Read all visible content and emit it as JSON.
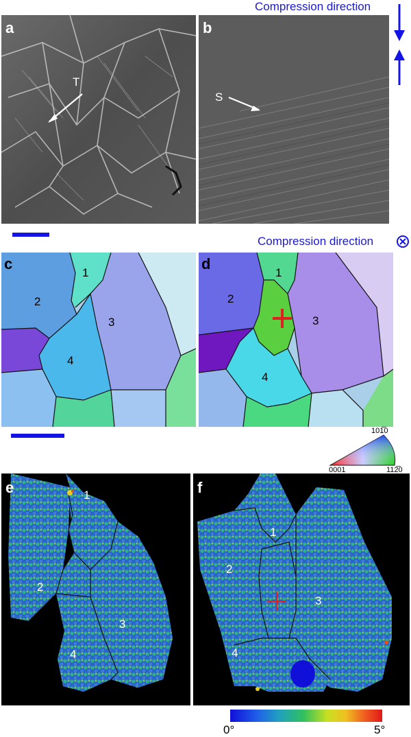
{
  "top_annotation": "Compression direction",
  "middle_annotation": "Compression direction",
  "panels": {
    "a": {
      "label": "a",
      "feature_label": "T"
    },
    "b": {
      "label": "b",
      "feature_label": "S"
    },
    "c": {
      "label": "c",
      "grains": [
        "1",
        "2",
        "3",
        "4"
      ]
    },
    "d": {
      "label": "d",
      "grains": [
        "1",
        "2",
        "3",
        "4"
      ]
    },
    "e": {
      "label": "e",
      "grains": [
        "1",
        "2",
        "3",
        "4"
      ]
    },
    "f": {
      "label": "f",
      "grains": [
        "1",
        "2",
        "3",
        "4"
      ]
    }
  },
  "ipf_legend": {
    "corner_0001": "0001",
    "corner_1120": "11⁠2̅0",
    "corner_1010": "101̅0"
  },
  "misorientation_scale": {
    "min_label": "0°",
    "max_label": "5°"
  },
  "colors": {
    "annotation_blue": "#1a1ad0",
    "marker_red": "#e02020"
  }
}
